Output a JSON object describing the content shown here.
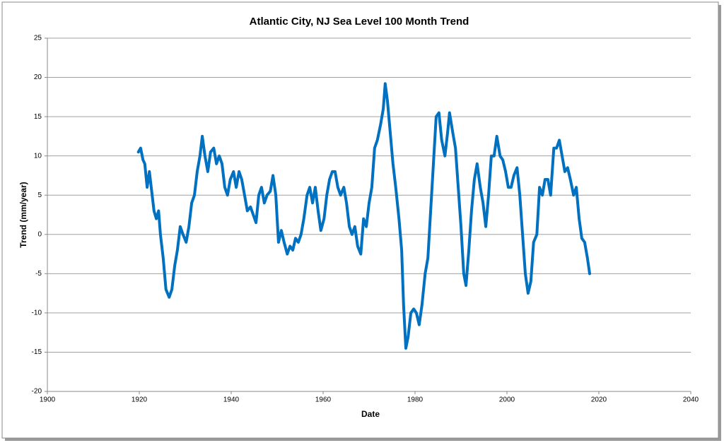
{
  "chart_data": {
    "type": "line",
    "title": "Atlantic City, NJ   Sea Level 100 Month Trend",
    "x_label": "Date",
    "y_label": "Trend (mm/year)",
    "xlim": [
      1900,
      2040
    ],
    "xticks": [
      1900,
      1920,
      1940,
      1960,
      1980,
      2000,
      2020,
      2040
    ],
    "ylim": [
      -20,
      25
    ],
    "yticks": [
      -20,
      -15,
      -10,
      -5,
      0,
      5,
      10,
      15,
      20,
      25
    ],
    "grid": true,
    "series": [
      {
        "name": "Trend",
        "color": "#0070c0",
        "x": [
          1919.8,
          1920.3,
          1920.8,
          1921.2,
          1921.7,
          1922.2,
          1922.6,
          1923.2,
          1923.7,
          1924.2,
          1924.6,
          1925.2,
          1925.8,
          1926.5,
          1927.1,
          1927.7,
          1928.3,
          1928.9,
          1929.5,
          1930.2,
          1930.8,
          1931.4,
          1932.0,
          1932.6,
          1933.2,
          1933.7,
          1934.3,
          1934.9,
          1935.5,
          1936.2,
          1936.8,
          1937.4,
          1938.0,
          1938.6,
          1939.2,
          1939.8,
          1940.5,
          1941.1,
          1941.7,
          1942.3,
          1942.9,
          1943.5,
          1944.2,
          1944.8,
          1945.4,
          1946.0,
          1946.6,
          1947.2,
          1947.8,
          1948.5,
          1949.1,
          1949.7,
          1950.3,
          1950.9,
          1951.5,
          1952.2,
          1952.8,
          1953.4,
          1954.0,
          1954.6,
          1955.2,
          1955.8,
          1956.5,
          1957.1,
          1957.7,
          1958.3,
          1958.9,
          1959.5,
          1960.2,
          1960.8,
          1961.4,
          1962.0,
          1962.6,
          1963.2,
          1963.8,
          1964.5,
          1965.1,
          1965.7,
          1966.3,
          1966.9,
          1967.5,
          1968.2,
          1968.8,
          1969.4,
          1970.0,
          1970.6,
          1971.2,
          1971.8,
          1972.5,
          1973.1,
          1973.5,
          1974.0,
          1974.6,
          1975.2,
          1975.8,
          1976.5,
          1977.1,
          1977.5,
          1978.0,
          1978.5,
          1979.1,
          1979.7,
          1980.3,
          1980.9,
          1981.5,
          1982.2,
          1982.8,
          1983.4,
          1984.0,
          1984.6,
          1985.2,
          1985.8,
          1986.5,
          1987.1,
          1987.5,
          1988.2,
          1988.8,
          1989.4,
          1990.0,
          1990.6,
          1991.1,
          1991.7,
          1992.3,
          1992.9,
          1993.5,
          1994.2,
          1994.8,
          1995.4,
          1996.0,
          1996.6,
          1997.2,
          1997.8,
          1998.5,
          1999.1,
          1999.7,
          2000.3,
          2000.9,
          2001.5,
          2002.2,
          2002.8,
          2003.4,
          2004.0,
          2004.6,
          2005.2,
          2005.8,
          2006.5,
          2007.1,
          2007.7,
          2008.3,
          2008.9,
          2009.5,
          2010.2,
          2010.8,
          2011.4,
          2012.0,
          2012.6,
          2013.2,
          2013.8,
          2014.5,
          2015.1,
          2015.7,
          2016.3,
          2016.9,
          2017.5,
          2018.0
        ],
        "values": [
          10.5,
          11,
          9.5,
          9,
          6,
          8,
          6,
          3,
          2,
          3,
          0,
          -3,
          -7,
          -8,
          -7,
          -4,
          -2,
          1,
          0,
          -1,
          1,
          4,
          5,
          8,
          10,
          12.5,
          10,
          8,
          10.5,
          11,
          9,
          10,
          9,
          6,
          5,
          7,
          8,
          6,
          8,
          7,
          5,
          3,
          3.5,
          2.5,
          1.5,
          5,
          6,
          4,
          5,
          5.5,
          7.5,
          5,
          -1,
          0.5,
          -1,
          -2.5,
          -1.5,
          -2,
          -0.5,
          -1,
          0,
          2,
          5,
          6,
          4,
          6,
          3,
          0.5,
          2,
          5,
          7,
          8,
          8,
          6,
          5,
          6,
          4,
          1,
          0,
          1,
          -1.5,
          -2.5,
          2,
          1,
          4,
          6,
          11,
          12,
          14,
          16,
          19.2,
          17,
          13,
          9,
          6,
          2,
          -2,
          -9,
          -14.5,
          -13,
          -10,
          -9.5,
          -10,
          -11.5,
          -9,
          -5,
          -3,
          3,
          9,
          15,
          15.5,
          12,
          10,
          13,
          15.5,
          13,
          11,
          6,
          1,
          -5,
          -6.5,
          -2,
          3,
          7,
          9,
          6,
          4,
          1,
          5,
          10,
          10,
          12.5,
          10,
          9.5,
          8,
          6,
          6,
          7.5,
          8.5,
          5,
          0,
          -5,
          -7.5,
          -6,
          -1,
          0,
          6,
          5,
          7,
          7,
          5,
          11,
          11,
          12,
          10,
          8,
          8.5,
          7,
          5,
          6,
          2,
          -0.5,
          -1,
          -3,
          -5
        ]
      }
    ]
  }
}
